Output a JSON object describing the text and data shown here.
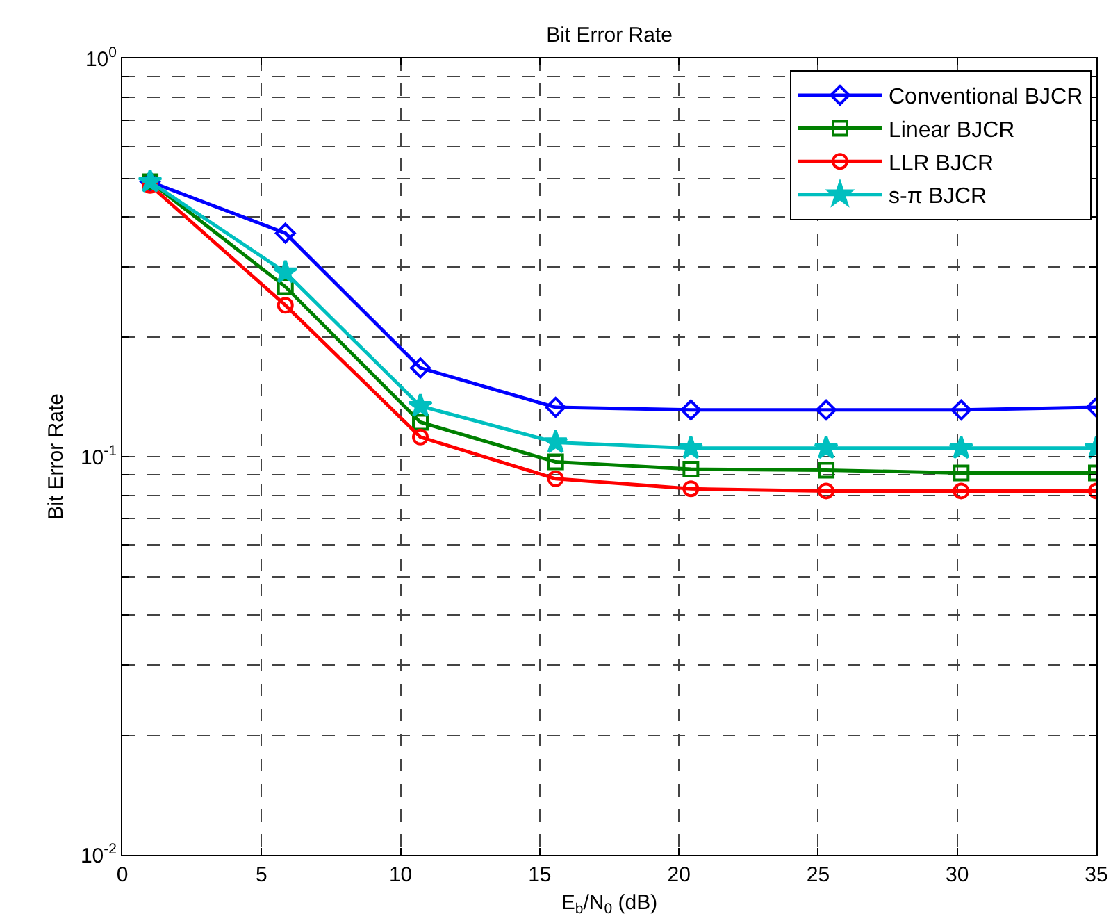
{
  "chart_data": {
    "type": "line",
    "title": "Bit Error Rate",
    "xlabel": "E$_{b}$/N$_{0}$ (dB)",
    "ylabel": "Bit Error Rate",
    "x": [
      1,
      5.86,
      10.71,
      15.57,
      20.43,
      25.29,
      30.14,
      35
    ],
    "series": [
      {
        "name": "Conventional BJCR",
        "color": "#0000ff",
        "marker": "diamond",
        "values": [
          0.49,
          0.364,
          0.167,
          0.133,
          0.131,
          0.131,
          0.131,
          0.133
        ]
      },
      {
        "name": "Linear BJCR",
        "color": "#008000",
        "marker": "square",
        "values": [
          0.49,
          0.267,
          0.122,
          0.097,
          0.093,
          0.0925,
          0.091,
          0.091
        ]
      },
      {
        "name": "LLR BJCR",
        "color": "#ff0000",
        "marker": "circle",
        "values": [
          0.48,
          0.24,
          0.112,
          0.088,
          0.083,
          0.082,
          0.082,
          0.082
        ]
      },
      {
        "name": "s-π BJCR",
        "color": "#00bfbf",
        "marker": "star",
        "values": [
          0.49,
          0.29,
          0.134,
          0.1086,
          0.105,
          0.105,
          0.105,
          0.105
        ]
      }
    ],
    "log": true,
    "grid": true,
    "legend": "top right",
    "line_style": "solid",
    "xlim": [
      0,
      35
    ],
    "xticks": [
      0,
      5,
      10,
      15,
      20,
      25,
      30,
      35
    ],
    "ylim": [
      0.01,
      1
    ],
    "yticks": [
      {
        "value": 0.01,
        "label": "10$^{-2}$"
      },
      {
        "value": 0.02,
        "label": null
      },
      {
        "value": 0.03,
        "label": null
      },
      {
        "value": 0.04,
        "label": null
      },
      {
        "value": 0.05,
        "label": null
      },
      {
        "value": 0.06,
        "label": null
      },
      {
        "value": 0.07,
        "label": null
      },
      {
        "value": 0.08,
        "label": null
      },
      {
        "value": 0.09,
        "label": null
      },
      {
        "value": 0.1,
        "label": "10$^{-1}$"
      },
      {
        "value": 0.2,
        "label": null
      },
      {
        "value": 0.3,
        "label": null
      },
      {
        "value": 0.4,
        "label": null
      },
      {
        "value": 0.5,
        "label": null
      },
      {
        "value": 0.6,
        "label": null
      },
      {
        "value": 0.7,
        "label": null
      },
      {
        "value": 0.8,
        "label": null
      },
      {
        "value": 0.9,
        "label": null
      },
      {
        "value": 1,
        "label": "10$^{0}$"
      }
    ]
  }
}
